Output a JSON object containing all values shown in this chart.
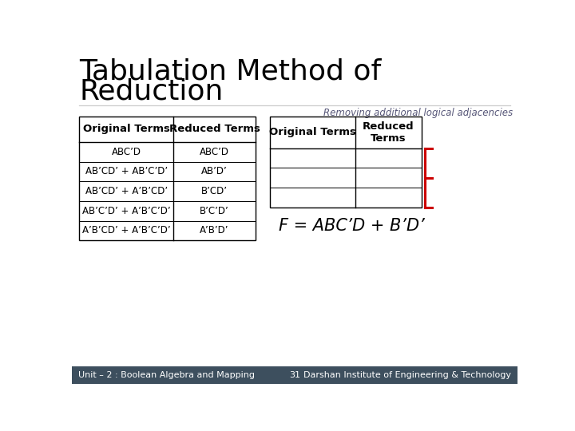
{
  "title_line1": "Tabulation Method of",
  "title_line2": "Reduction",
  "subtitle": "Removing additional logical adjacencies",
  "bg_color": "#ffffff",
  "title_color": "#000000",
  "subtitle_color": "#555577",
  "left_table": {
    "headers": [
      "Original Terms",
      "Reduced Terms"
    ],
    "rows": [
      [
        "ABC’D",
        "ABC’D"
      ],
      [
        "AB’CD’ + AB’C’D’",
        "AB’D’"
      ],
      [
        "AB’CD’ + A’B’CD’",
        "B’CD’"
      ],
      [
        "AB’C’D’ + A’B’C’D’",
        "B’C’D’"
      ],
      [
        "A’B’CD’ + A’B’C’D’",
        "A’B’D’"
      ]
    ]
  },
  "right_table": {
    "headers": [
      "Original Terms",
      "Reduced\nTerms"
    ],
    "rows": [
      [
        "",
        ""
      ],
      [
        "",
        ""
      ],
      [
        "",
        ""
      ]
    ]
  },
  "formula": "F = ABC’D + B’D’",
  "footer_left": "Unit – 2 : Boolean Algebra and Mapping",
  "footer_page": "31",
  "footer_right": "Darshan Institute of Engineering & Technology",
  "footer_bg": "#3d4f5e",
  "footer_text_color": "#ffffff",
  "brace_color": "#cc0000",
  "title_divider_color": "#cccccc"
}
